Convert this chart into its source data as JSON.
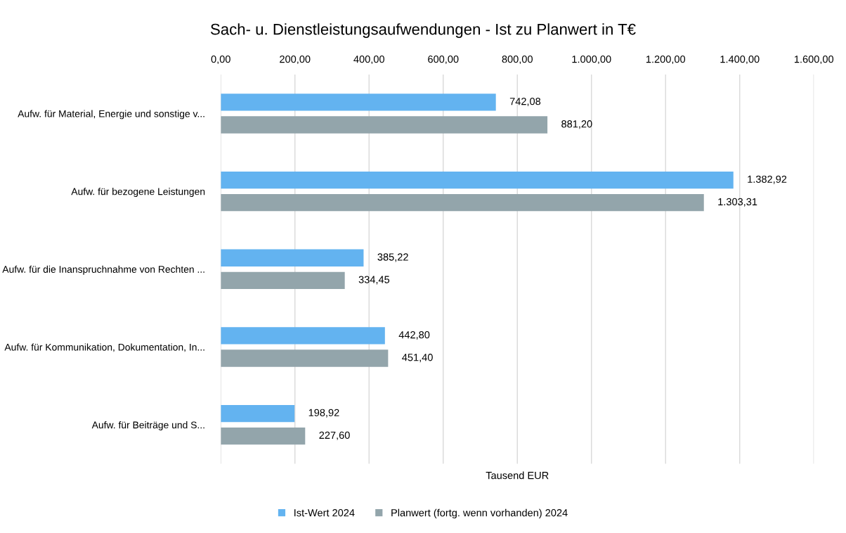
{
  "chart_data": {
    "type": "bar",
    "orientation": "horizontal",
    "title": "Sach- u. Dienstleistungsaufwendungen - Ist zu Planwert in T€",
    "xlabel": "Tausend EUR",
    "categories": [
      "Aufw. für Material, Energie und sonstige v...",
      "Aufw. für bezogene Leistungen",
      "Aufw. für die Inanspruchnahme von Rechten ...",
      "Aufw. für Kommunikation, Dokumentation, In...",
      "Aufw. für Beiträge und S..."
    ],
    "series": [
      {
        "name": "Ist-Wert 2024",
        "color": "#63b3f0",
        "values": [
          742.08,
          1382.92,
          385.22,
          442.8,
          198.92
        ],
        "value_labels": [
          "742,08",
          "1.382,92",
          "385,22",
          "442,80",
          "198,92"
        ]
      },
      {
        "name": "Planwert (fortg. wenn vorhanden) 2024",
        "color": "#93a5ab",
        "values": [
          881.2,
          1303.31,
          334.45,
          451.4,
          227.6
        ],
        "value_labels": [
          "881,20",
          "1.303,31",
          "334,45",
          "451,40",
          "227,60"
        ]
      }
    ],
    "xlim": [
      0,
      1600
    ],
    "xticks": [
      {
        "value": 0,
        "label": "0,00"
      },
      {
        "value": 200,
        "label": "200,00"
      },
      {
        "value": 400,
        "label": "400,00"
      },
      {
        "value": 600,
        "label": "600,00"
      },
      {
        "value": 800,
        "label": "800,00"
      },
      {
        "value": 1000,
        "label": "1.000,00"
      },
      {
        "value": 1200,
        "label": "1.200,00"
      },
      {
        "value": 1400,
        "label": "1.400,00"
      },
      {
        "value": 1600,
        "label": "1.600,00"
      }
    ],
    "grid": "x",
    "legend": "bottom"
  }
}
